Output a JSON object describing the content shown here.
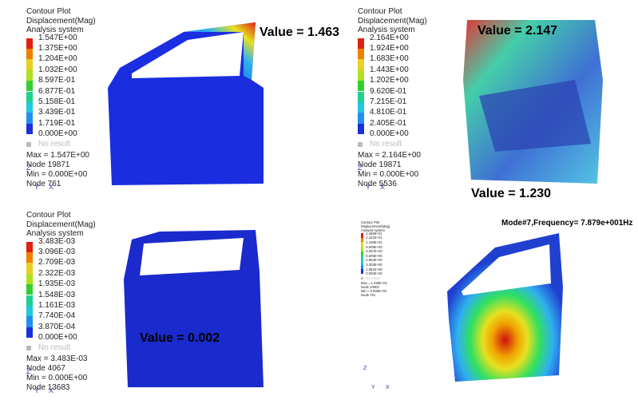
{
  "panels": [
    {
      "title_lines": [
        "Contour Plot",
        "Displacement(Mag)",
        "Analysis system"
      ],
      "legend": [
        "1.547E+00",
        "1.375E+00",
        "1.204E+00",
        "1.032E+00",
        "8.597E-01",
        "6.877E-01",
        "5.158E-01",
        "3.439E-01",
        "1.719E-01",
        "0.000E+00"
      ],
      "no_result": "No result",
      "stats": [
        "Max = 1.547E+00",
        "Node 19871",
        "Min = 0.000E+00",
        "Node 761"
      ],
      "triad": [
        "Z",
        "Y",
        "X"
      ],
      "annotations": [
        "Value = 1.463"
      ]
    },
    {
      "title_lines": [
        "Contour Plot",
        "Displacement(Mag)",
        "Analysis system"
      ],
      "legend": [
        "2.164E+00",
        "1.924E+00",
        "1.683E+00",
        "1.443E+00",
        "1.202E+00",
        "9.620E-01",
        "7.215E-01",
        "4.810E-01",
        "2.405E-01",
        "0.000E+00"
      ],
      "no_result": "No result",
      "stats": [
        "Max = 2.164E+00",
        "Node 19871",
        "Min = 0.000E+00",
        "Node 5536"
      ],
      "triad": [
        "Z",
        "Y",
        "X"
      ],
      "annotations": [
        "Value = 2.147",
        "Value = 1.230"
      ]
    },
    {
      "title_lines": [
        "Contour Plot",
        "Displacement(Mag)",
        "Analysis system"
      ],
      "legend": [
        "3.483E-03",
        "3.096E-03",
        "2.709E-03",
        "2.322E-03",
        "1.935E-03",
        "1.548E-03",
        "1.161E-03",
        "7.740E-04",
        "3.870E-04",
        "0.000E+00"
      ],
      "no_result": "No result",
      "stats": [
        "Max = 3.483E-03",
        "Node 4067",
        "Min = 0.000E+00",
        "Node 13683"
      ],
      "triad": [
        "Z",
        "Y",
        "X"
      ],
      "annotations": [
        "Value = 0.002"
      ]
    },
    {
      "title_lines": [
        "Contour Plot",
        "Displacement(Mag)",
        "Analysis system"
      ],
      "legend": [
        "1.486E+01",
        "1.321E+01",
        "1.156E+01",
        "9.908E+00",
        "8.257E+00",
        "6.605E+00",
        "4.954E+00",
        "3.303E+00",
        "1.651E+00",
        "0.000E+00"
      ],
      "no_result": "No result",
      "stats": [
        "Max = 1.486E+01",
        "Node 10603",
        "Min = 0.000E+00",
        "Node 761"
      ],
      "triad": [
        "Z",
        "Y",
        "X"
      ],
      "annotations": [],
      "header": "Mode#7,Frequency=  7.879e+001Hz"
    }
  ]
}
